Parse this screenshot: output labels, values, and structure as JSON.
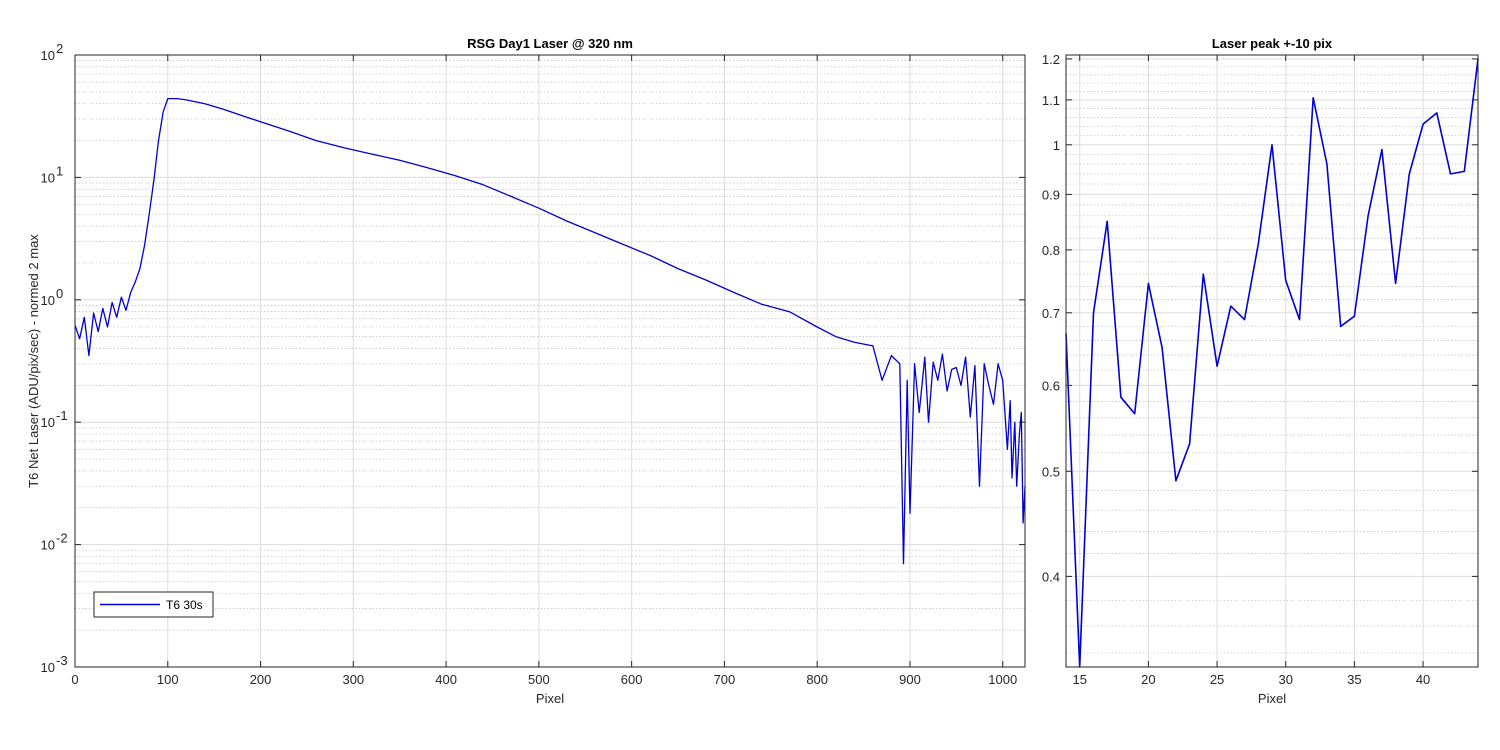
{
  "chart_data": [
    {
      "type": "line",
      "title": "RSG  Day1 Laser @ 320 nm",
      "xlabel": "Pixel",
      "ylabel": "T6 Net Laser (ADU/pix/sec) - normed 2 max",
      "yscale": "log",
      "xlim": [
        0,
        1024
      ],
      "ylim": [
        0.001,
        100
      ],
      "xticks": [
        0,
        100,
        200,
        300,
        400,
        500,
        600,
        700,
        800,
        900,
        1000
      ],
      "yticks": [
        {
          "value": 0.001,
          "base": "10",
          "exp": "-3"
        },
        {
          "value": 0.01,
          "base": "10",
          "exp": "-2"
        },
        {
          "value": 0.1,
          "base": "10",
          "exp": "-1"
        },
        {
          "value": 1,
          "base": "10",
          "exp": "0"
        },
        {
          "value": 10,
          "base": "10",
          "exp": "1"
        },
        {
          "value": 100,
          "base": "10",
          "exp": "2"
        }
      ],
      "grid": true,
      "minor_grid": true,
      "legend": {
        "position": "bottom-left"
      },
      "series": [
        {
          "name": "T6 30s",
          "color": "#0000d6",
          "x": [
            0,
            5,
            10,
            15,
            20,
            25,
            30,
            35,
            40,
            45,
            50,
            55,
            60,
            65,
            70,
            75,
            80,
            85,
            90,
            95,
            100,
            110,
            120,
            140,
            160,
            180,
            200,
            230,
            260,
            290,
            320,
            350,
            380,
            410,
            440,
            470,
            500,
            530,
            560,
            590,
            620,
            650,
            680,
            710,
            740,
            770,
            800,
            820,
            840,
            860,
            870,
            880,
            889,
            893,
            897,
            900,
            905,
            910,
            916,
            920,
            925,
            930,
            935,
            940,
            945,
            950,
            955,
            960,
            965,
            970,
            975,
            980,
            985,
            990,
            995,
            1000,
            1005,
            1008,
            1010,
            1013,
            1015,
            1018,
            1020,
            1022,
            1024
          ],
          "y": [
            0.62,
            0.48,
            0.72,
            0.35,
            0.78,
            0.55,
            0.85,
            0.6,
            0.95,
            0.72,
            1.05,
            0.82,
            1.15,
            1.4,
            1.8,
            2.8,
            5.0,
            9.5,
            20.0,
            34.0,
            44.0,
            44.0,
            43.0,
            40.0,
            36.0,
            32.0,
            28.5,
            24.0,
            20.0,
            17.5,
            15.5,
            13.8,
            12.0,
            10.3,
            8.7,
            7.0,
            5.6,
            4.4,
            3.55,
            2.85,
            2.3,
            1.8,
            1.45,
            1.15,
            0.92,
            0.8,
            0.6,
            0.5,
            0.45,
            0.42,
            0.22,
            0.35,
            0.3,
            0.007,
            0.22,
            0.018,
            0.3,
            0.12,
            0.34,
            0.1,
            0.31,
            0.22,
            0.36,
            0.18,
            0.27,
            0.28,
            0.2,
            0.34,
            0.11,
            0.29,
            0.03,
            0.3,
            0.2,
            0.14,
            0.3,
            0.22,
            0.06,
            0.15,
            0.035,
            0.1,
            0.03,
            0.08,
            0.12,
            0.015,
            0.03
          ]
        }
      ]
    },
    {
      "type": "line",
      "title": "Laser peak +-10 pix",
      "xlabel": "Pixel",
      "yscale": "log",
      "xlim": [
        14,
        44
      ],
      "ylim": [
        0.33,
        1.21
      ],
      "xticks": [
        15,
        20,
        25,
        30,
        35,
        40
      ],
      "yticks": [
        0.4,
        0.5,
        0.6,
        0.7,
        0.8,
        0.9,
        1,
        1.1,
        1.2
      ],
      "ytick_labels": [
        "0.4",
        "0.5",
        "0.6",
        "0.7",
        "0.8",
        "0.9",
        "1",
        "1.1",
        "1.2"
      ],
      "grid": true,
      "minor_grid": true,
      "series": [
        {
          "color": "#0000d6",
          "x": [
            14,
            15,
            16,
            17,
            18,
            19,
            20,
            21,
            22,
            23,
            24,
            25,
            26,
            27,
            28,
            29,
            30,
            31,
            32,
            33,
            34,
            35,
            36,
            37,
            38,
            39,
            40,
            41,
            42,
            43,
            44
          ],
          "y": [
            0.67,
            0.33,
            0.7,
            0.85,
            0.585,
            0.565,
            0.745,
            0.65,
            0.49,
            0.53,
            0.76,
            0.625,
            0.71,
            0.69,
            0.81,
            1.0,
            0.75,
            0.69,
            1.105,
            0.96,
            0.68,
            0.695,
            0.86,
            0.99,
            0.745,
            0.94,
            1.045,
            1.07,
            0.94,
            0.945,
            1.2
          ]
        }
      ]
    }
  ]
}
